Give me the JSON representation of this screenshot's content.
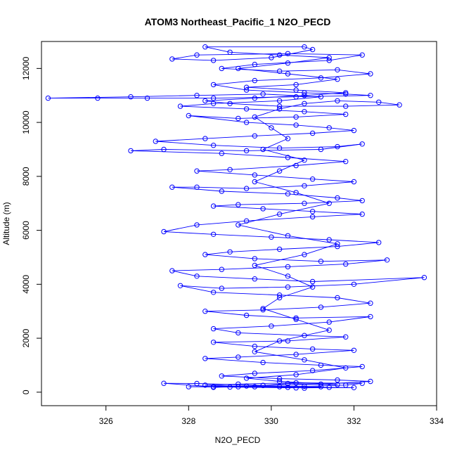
{
  "chart_data": {
    "type": "line",
    "title": "ATOM3 Northeast_Pacific_1 N2O_PECD",
    "xlabel": "N2O_PECD",
    "ylabel": "Altitude (m)",
    "xlim": [
      324.3,
      634.0
    ],
    "ylim": [
      -500,
      13000
    ],
    "x_ticks": [
      326,
      328,
      330,
      332,
      334
    ],
    "y_ticks": [
      0,
      2000,
      4000,
      6000,
      8000,
      10000,
      12000
    ],
    "grid": false,
    "line_color": "#0000ff",
    "marker": "open-circle",
    "series": [
      {
        "name": "",
        "points": [
          [
            330.8,
            150
          ],
          [
            331.2,
            200
          ],
          [
            330.4,
            180
          ],
          [
            329.2,
            200
          ],
          [
            328.6,
            180
          ],
          [
            329.8,
            250
          ],
          [
            330.4,
            320
          ],
          [
            331.6,
            280
          ],
          [
            330.2,
            400
          ],
          [
            329.4,
            520
          ],
          [
            330.6,
            650
          ],
          [
            331.8,
            900
          ],
          [
            330.8,
            1200
          ],
          [
            329.6,
            1500
          ],
          [
            330.2,
            1900
          ],
          [
            331.4,
            2300
          ],
          [
            330.6,
            2700
          ],
          [
            329.8,
            3100
          ],
          [
            330.2,
            3500
          ],
          [
            331.0,
            3900
          ],
          [
            330.4,
            4300
          ],
          [
            329.6,
            4700
          ],
          [
            330.8,
            5100
          ],
          [
            331.6,
            5500
          ],
          [
            330.4,
            5800
          ],
          [
            329.2,
            6200
          ],
          [
            330.2,
            6600
          ],
          [
            331.4,
            7000
          ],
          [
            330.6,
            7400
          ],
          [
            329.6,
            7800
          ],
          [
            330.2,
            8200
          ],
          [
            330.8,
            8600
          ],
          [
            329.8,
            9000
          ],
          [
            330.4,
            9400
          ],
          [
            330.0,
            9800
          ],
          [
            329.6,
            10200
          ],
          [
            330.2,
            10500
          ],
          [
            330.8,
            10700
          ],
          [
            331.6,
            10800
          ],
          [
            332.6,
            10750
          ],
          [
            333.1,
            10650
          ],
          [
            331.8,
            10600
          ],
          [
            330.2,
            10600
          ],
          [
            329.0,
            10700
          ],
          [
            328.4,
            10800
          ],
          [
            329.6,
            10900
          ],
          [
            330.8,
            11000
          ],
          [
            331.8,
            11100
          ],
          [
            330.6,
            11200
          ],
          [
            329.4,
            11300
          ],
          [
            330.6,
            11400
          ],
          [
            331.6,
            11600
          ],
          [
            330.4,
            11800
          ],
          [
            329.2,
            12000
          ],
          [
            330.4,
            12200
          ],
          [
            331.4,
            12400
          ],
          [
            330.2,
            12500
          ],
          [
            329.0,
            12600
          ],
          [
            328.4,
            12800
          ],
          [
            330.8,
            12800
          ],
          [
            331.0,
            12700
          ],
          [
            330.0,
            12400
          ],
          [
            328.6,
            12300
          ],
          [
            327.6,
            12350
          ],
          [
            328.2,
            12500
          ],
          [
            330.4,
            12550
          ],
          [
            332.2,
            12500
          ],
          [
            331.4,
            12300
          ],
          [
            329.6,
            12150
          ],
          [
            328.8,
            12000
          ],
          [
            330.2,
            11900
          ],
          [
            331.6,
            11950
          ],
          [
            332.4,
            11800
          ],
          [
            331.2,
            11650
          ],
          [
            329.6,
            11550
          ],
          [
            328.6,
            11400
          ],
          [
            329.4,
            11200
          ],
          [
            330.8,
            11100
          ],
          [
            331.8,
            11050
          ],
          [
            332.4,
            11000
          ],
          [
            330.6,
            10950
          ],
          [
            328.6,
            10900
          ],
          [
            327.0,
            10900
          ],
          [
            325.8,
            10900
          ],
          [
            324.6,
            10900
          ],
          [
            326.6,
            10950
          ],
          [
            328.2,
            11000
          ],
          [
            329.8,
            11050
          ],
          [
            331.2,
            10950
          ],
          [
            330.2,
            10800
          ],
          [
            328.6,
            10700
          ],
          [
            327.8,
            10600
          ],
          [
            329.4,
            10500
          ],
          [
            330.8,
            10400
          ],
          [
            331.8,
            10300
          ],
          [
            330.6,
            10200
          ],
          [
            329.2,
            10150
          ],
          [
            328.0,
            10250
          ],
          [
            329.4,
            10000
          ],
          [
            330.6,
            9900
          ],
          [
            331.4,
            9800
          ],
          [
            332.0,
            9700
          ],
          [
            331.0,
            9600
          ],
          [
            329.6,
            9500
          ],
          [
            328.4,
            9400
          ],
          [
            327.2,
            9300
          ],
          [
            328.6,
            9150
          ],
          [
            330.2,
            9050
          ],
          [
            331.6,
            9100
          ],
          [
            332.2,
            9200
          ],
          [
            331.2,
            9000
          ],
          [
            329.4,
            8950
          ],
          [
            327.4,
            9000
          ],
          [
            326.6,
            8950
          ],
          [
            328.8,
            8850
          ],
          [
            330.4,
            8700
          ],
          [
            331.8,
            8550
          ],
          [
            330.6,
            8400
          ],
          [
            329.0,
            8250
          ],
          [
            328.2,
            8200
          ],
          [
            329.6,
            8050
          ],
          [
            331.0,
            7900
          ],
          [
            332.0,
            7800
          ],
          [
            330.8,
            7650
          ],
          [
            329.4,
            7550
          ],
          [
            328.2,
            7600
          ],
          [
            327.6,
            7600
          ],
          [
            328.8,
            7450
          ],
          [
            330.4,
            7350
          ],
          [
            331.6,
            7200
          ],
          [
            332.2,
            7100
          ],
          [
            330.8,
            7000
          ],
          [
            329.2,
            6950
          ],
          [
            328.6,
            6900
          ],
          [
            329.8,
            6800
          ],
          [
            331.0,
            6700
          ],
          [
            332.2,
            6600
          ],
          [
            331.0,
            6500
          ],
          [
            329.4,
            6350
          ],
          [
            328.2,
            6200
          ],
          [
            327.4,
            5950
          ],
          [
            328.6,
            5850
          ],
          [
            330.0,
            5750
          ],
          [
            331.4,
            5650
          ],
          [
            332.6,
            5550
          ],
          [
            331.6,
            5400
          ],
          [
            330.2,
            5300
          ],
          [
            329.0,
            5200
          ],
          [
            328.4,
            5100
          ],
          [
            329.6,
            4950
          ],
          [
            331.2,
            4850
          ],
          [
            332.8,
            4900
          ],
          [
            331.8,
            4750
          ],
          [
            330.4,
            4650
          ],
          [
            328.8,
            4550
          ],
          [
            327.6,
            4500
          ],
          [
            328.2,
            4300
          ],
          [
            329.6,
            4200
          ],
          [
            331.0,
            4100
          ],
          [
            333.7,
            4250
          ],
          [
            332.0,
            4000
          ],
          [
            330.4,
            3900
          ],
          [
            328.8,
            3850
          ],
          [
            327.8,
            3950
          ],
          [
            328.6,
            3700
          ],
          [
            330.2,
            3600
          ],
          [
            331.6,
            3500
          ],
          [
            332.4,
            3300
          ],
          [
            331.2,
            3150
          ],
          [
            329.8,
            3050
          ],
          [
            328.4,
            3000
          ],
          [
            329.4,
            2850
          ],
          [
            330.6,
            2750
          ],
          [
            332.4,
            2800
          ],
          [
            331.4,
            2600
          ],
          [
            330.0,
            2450
          ],
          [
            328.6,
            2350
          ],
          [
            329.2,
            2200
          ],
          [
            330.8,
            2100
          ],
          [
            331.8,
            2050
          ],
          [
            330.4,
            1900
          ],
          [
            328.6,
            1850
          ],
          [
            329.6,
            1700
          ],
          [
            331.0,
            1600
          ],
          [
            332.0,
            1550
          ],
          [
            330.6,
            1400
          ],
          [
            329.2,
            1300
          ],
          [
            328.4,
            1250
          ],
          [
            329.8,
            1100
          ],
          [
            331.2,
            1000
          ],
          [
            332.2,
            950
          ],
          [
            331.0,
            800
          ],
          [
            329.6,
            700
          ],
          [
            328.8,
            600
          ],
          [
            330.2,
            500
          ],
          [
            331.6,
            450
          ],
          [
            332.4,
            400
          ],
          [
            331.2,
            300
          ],
          [
            329.8,
            250
          ],
          [
            328.2,
            320
          ],
          [
            327.4,
            330
          ],
          [
            328.6,
            200
          ],
          [
            330.2,
            200
          ],
          [
            331.4,
            180
          ],
          [
            332.0,
            170
          ],
          [
            330.6,
            160
          ],
          [
            329.0,
            190
          ],
          [
            328.0,
            200
          ],
          [
            329.4,
            230
          ],
          [
            330.8,
            220
          ],
          [
            331.8,
            260
          ],
          [
            332.2,
            330
          ],
          [
            330.6,
            350
          ],
          [
            329.2,
            300
          ],
          [
            328.4,
            260
          ],
          [
            329.6,
            200
          ]
        ]
      }
    ]
  }
}
